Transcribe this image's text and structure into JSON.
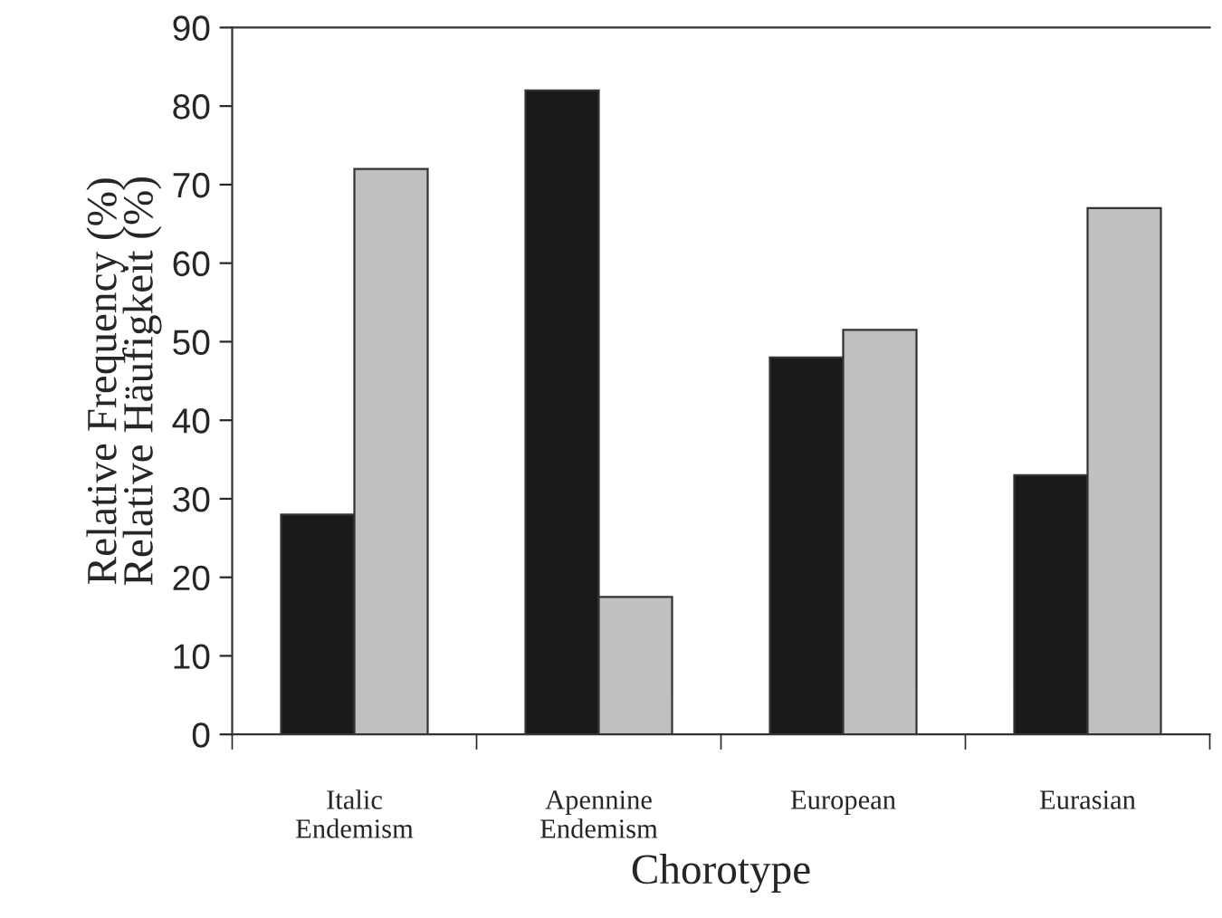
{
  "chart_data": {
    "type": "bar",
    "xlabel": "Chorotype",
    "ylabel": "Relative Frequency (%)\nRelative Häufigkeit (%)",
    "categories": [
      "Italic\nEndemism",
      "Apennine\nEndemism",
      "European",
      "Eurasian"
    ],
    "series": [
      {
        "color": "#1a1a1a",
        "values": [
          28,
          82,
          48,
          33
        ]
      },
      {
        "color": "#c0c0c0",
        "values": [
          72,
          17.5,
          51.5,
          67
        ]
      }
    ],
    "ylim": [
      0,
      90
    ],
    "yticks": [
      0,
      10,
      20,
      30,
      40,
      50,
      60,
      70,
      80,
      90
    ],
    "grid": false,
    "legend": false
  }
}
